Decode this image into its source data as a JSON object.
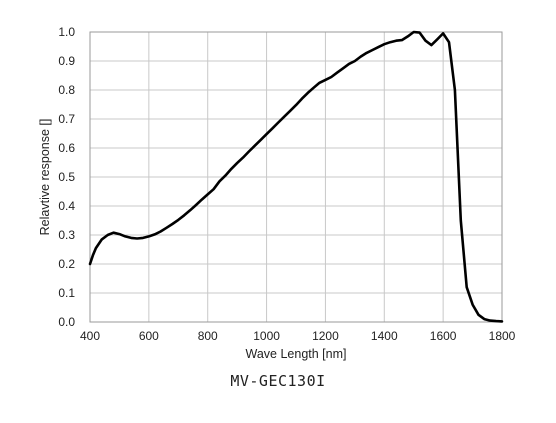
{
  "chart_data": {
    "type": "line",
    "xlabel": "Wave Length [nm]",
    "ylabel": "Relavtive response []",
    "xlim": [
      400,
      1800
    ],
    "ylim": [
      0,
      1.0
    ],
    "x_ticks": [
      "400",
      "600",
      "800",
      "1000",
      "1200",
      "1400",
      "1600",
      "1800"
    ],
    "y_ticks": [
      "0.0",
      "0.1",
      "0.2",
      "0.3",
      "0.4",
      "0.5",
      "0.6",
      "0.7",
      "0.8",
      "0.9",
      "1.0"
    ],
    "grid": true,
    "line_color": "#000000",
    "series": [
      {
        "x": [
          400,
          410,
          420,
          440,
          460,
          480,
          500,
          520,
          540,
          560,
          580,
          600,
          620,
          640,
          660,
          680,
          700,
          720,
          740,
          760,
          780,
          800,
          820,
          840,
          860,
          880,
          900,
          920,
          940,
          960,
          980,
          1000,
          1020,
          1040,
          1060,
          1080,
          1100,
          1120,
          1140,
          1160,
          1180,
          1200,
          1220,
          1240,
          1260,
          1280,
          1300,
          1320,
          1340,
          1360,
          1380,
          1400,
          1420,
          1440,
          1460,
          1480,
          1500,
          1520,
          1540,
          1560,
          1580,
          1600,
          1620,
          1640,
          1660,
          1680,
          1700,
          1720,
          1740,
          1760,
          1780,
          1800
        ],
        "y": [
          0.2,
          0.23,
          0.255,
          0.285,
          0.3,
          0.308,
          0.303,
          0.295,
          0.29,
          0.288,
          0.29,
          0.295,
          0.302,
          0.312,
          0.325,
          0.338,
          0.352,
          0.368,
          0.385,
          0.403,
          0.422,
          0.44,
          0.458,
          0.485,
          0.505,
          0.528,
          0.548,
          0.567,
          0.588,
          0.608,
          0.628,
          0.648,
          0.668,
          0.688,
          0.708,
          0.728,
          0.748,
          0.77,
          0.79,
          0.808,
          0.825,
          0.835,
          0.845,
          0.86,
          0.875,
          0.89,
          0.9,
          0.915,
          0.928,
          0.938,
          0.948,
          0.958,
          0.965,
          0.97,
          0.972,
          0.985,
          1.0,
          0.998,
          0.97,
          0.955,
          0.975,
          0.995,
          0.965,
          0.8,
          0.35,
          0.12,
          0.06,
          0.025,
          0.01,
          0.005,
          0.003,
          0.002
        ]
      }
    ]
  },
  "caption": "MV-GEC130I"
}
